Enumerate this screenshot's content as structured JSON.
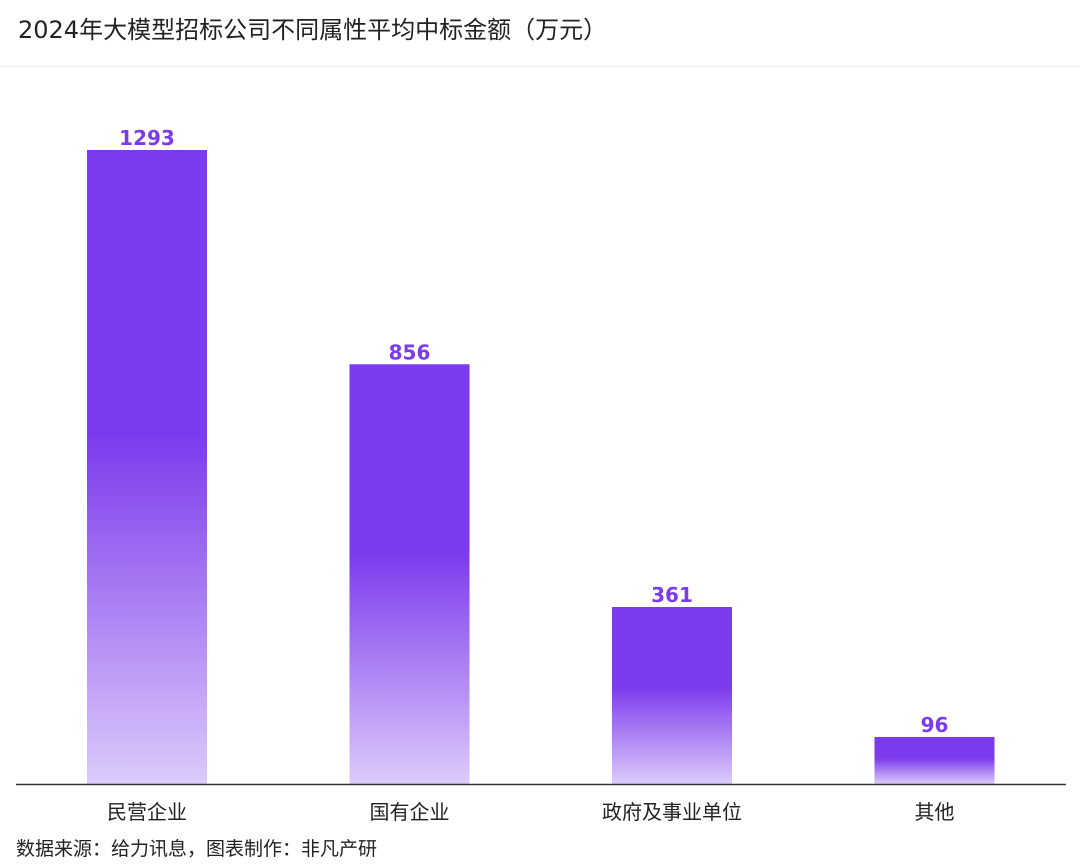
{
  "chart_data": {
    "type": "bar",
    "title": "2024年大模型招标公司不同属性平均中标金额（万元）",
    "categories": [
      "民营企业",
      "国有企业",
      "政府及事业单位",
      "其他"
    ],
    "values": [
      1293,
      856,
      361,
      96
    ],
    "xlabel": "",
    "ylabel": "",
    "ylim": [
      0,
      1400
    ],
    "grid": false,
    "legend": "none",
    "bar_color_top": "#7c3aed",
    "bar_color_bottom": "#dccbfa",
    "label_color": "#7c3aed",
    "axis_color": "#333333"
  },
  "footer": {
    "source": "数据来源：给力讯息，图表制作：非凡产研"
  }
}
